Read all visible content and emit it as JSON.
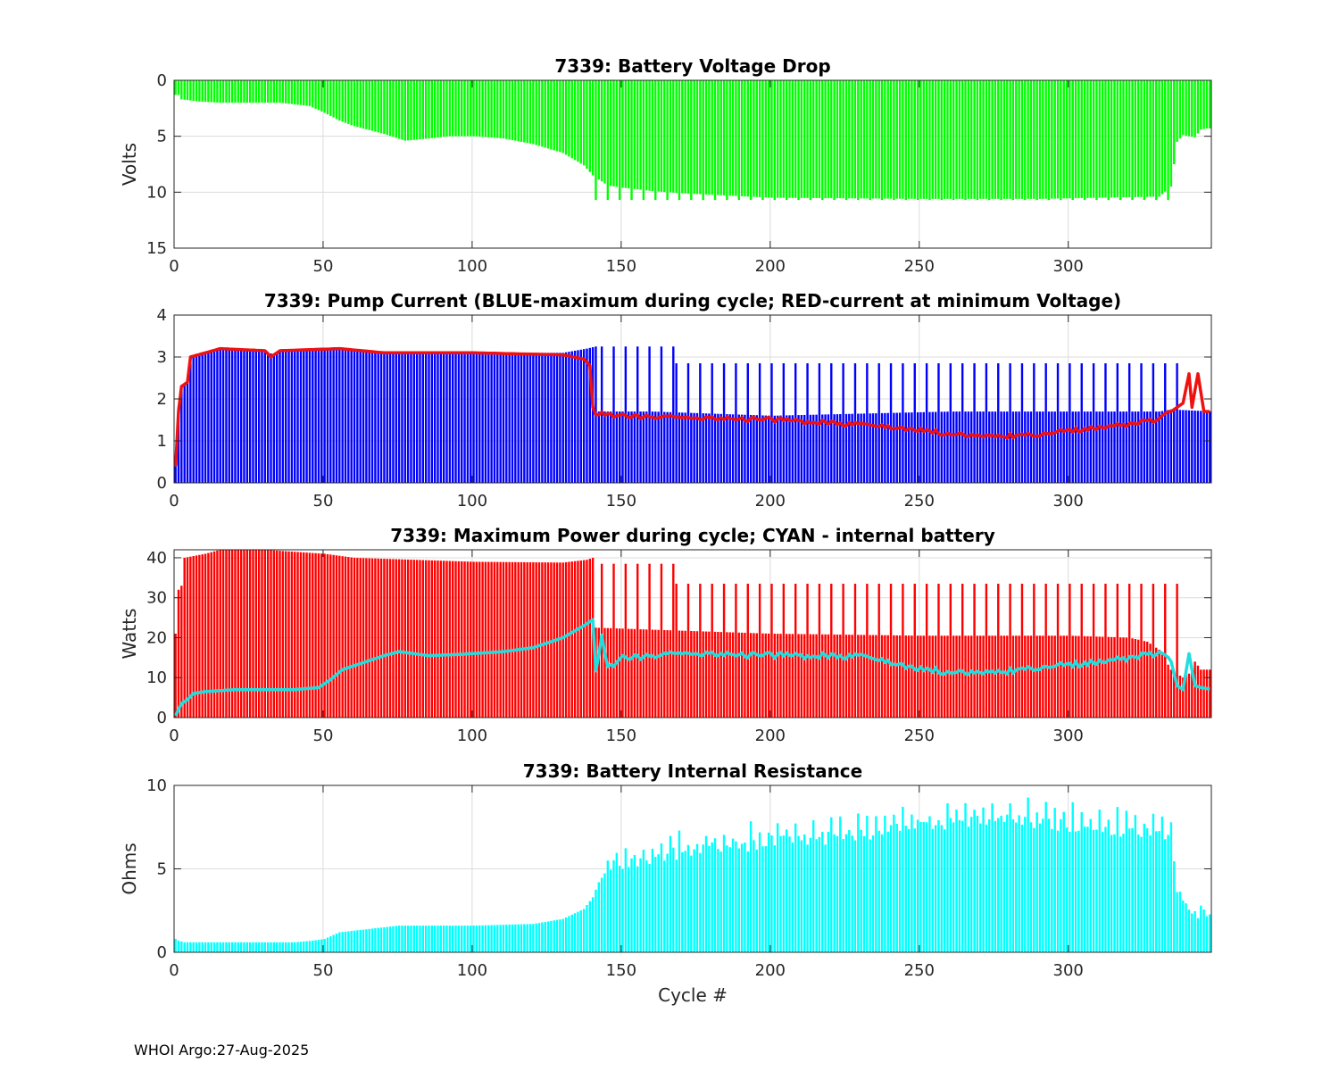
{
  "footer": "WHOI Argo:27-Aug-2025",
  "colors": {
    "green": "#00ff00",
    "blue": "#0000ff",
    "red": "#ff0000",
    "cyan": "#00ffff",
    "line_red": "#ee1111",
    "line_cyan": "#22dddd"
  },
  "chart_data": [
    {
      "type": "bar",
      "title": "7339: Battery Voltage Drop",
      "xlabel": "",
      "ylabel": "Volts",
      "xlim": [
        0,
        348
      ],
      "ylim": [
        0,
        15
      ],
      "y_reversed": true,
      "xticks": [
        0,
        50,
        100,
        150,
        200,
        250,
        300
      ],
      "yticks": [
        0,
        5,
        10,
        15
      ],
      "grid": true,
      "bar_color": "#00ff00",
      "series": [
        {
          "name": "Voltage drop",
          "kind": "bar",
          "profile": [
            [
              0,
              1.3
            ],
            [
              1,
              1.3
            ],
            [
              2,
              1.7
            ],
            [
              8,
              1.9
            ],
            [
              15,
              2.0
            ],
            [
              25,
              2.0
            ],
            [
              35,
              2.0
            ],
            [
              45,
              2.3
            ],
            [
              50,
              2.9
            ],
            [
              55,
              3.6
            ],
            [
              60,
              4.1
            ],
            [
              70,
              4.8
            ],
            [
              77,
              5.4
            ],
            [
              85,
              5.2
            ],
            [
              92,
              5.0
            ],
            [
              100,
              5.0
            ],
            [
              110,
              5.2
            ],
            [
              120,
              5.7
            ],
            [
              130,
              6.5
            ],
            [
              137,
              7.6
            ],
            [
              140,
              8.5
            ],
            [
              145,
              9.4
            ],
            [
              150,
              9.6
            ],
            [
              160,
              9.9
            ],
            [
              170,
              10.1
            ],
            [
              200,
              10.5
            ],
            [
              250,
              10.6
            ],
            [
              290,
              10.6
            ],
            [
              310,
              10.5
            ],
            [
              330,
              10.4
            ],
            [
              334,
              9.5
            ],
            [
              336,
              5.5
            ],
            [
              338,
              4.9
            ],
            [
              340,
              5.0
            ],
            [
              342,
              5.1
            ],
            [
              344,
              4.4
            ],
            [
              346,
              4.3
            ],
            [
              348,
              4.3
            ]
          ],
          "spikes": [
            {
              "every": 4,
              "start": 141,
              "end": 334,
              "value": 10.7
            }
          ]
        }
      ]
    },
    {
      "type": "bar",
      "title": "7339: Pump Current (BLUE-maximum during cycle; RED-current at minimum Voltage)",
      "xlabel": "",
      "ylabel": "",
      "xlim": [
        0,
        348
      ],
      "ylim": [
        0,
        4
      ],
      "xticks": [
        0,
        50,
        100,
        150,
        200,
        250,
        300
      ],
      "yticks": [
        0,
        1,
        2,
        3,
        4
      ],
      "grid": true,
      "bar_color": "#0000ff",
      "line_color": "#ee1111",
      "series": [
        {
          "name": "Maximum current during cycle",
          "kind": "bar",
          "profile": [
            [
              0,
              0.4
            ],
            [
              1,
              1.8
            ],
            [
              2,
              2.3
            ],
            [
              4,
              2.4
            ],
            [
              5,
              3.0
            ],
            [
              10,
              3.1
            ],
            [
              15,
              3.2
            ],
            [
              30,
              3.15
            ],
            [
              33,
              3.05
            ],
            [
              35,
              3.15
            ],
            [
              55,
              3.2
            ],
            [
              70,
              3.1
            ],
            [
              100,
              3.1
            ],
            [
              130,
              3.1
            ],
            [
              138,
              3.2
            ],
            [
              141,
              3.25
            ],
            [
              142,
              1.7
            ],
            [
              160,
              1.7
            ],
            [
              180,
              1.65
            ],
            [
              200,
              1.6
            ],
            [
              230,
              1.65
            ],
            [
              260,
              1.7
            ],
            [
              300,
              1.7
            ],
            [
              330,
              1.7
            ],
            [
              334,
              1.75
            ],
            [
              348,
              1.7
            ]
          ],
          "spikes": [
            {
              "every": 4,
              "start": 143,
              "end": 167,
              "value": 3.25
            },
            {
              "every": 4,
              "start": 168,
              "end": 336,
              "value": 2.85
            }
          ]
        },
        {
          "name": "Current at minimum voltage",
          "kind": "line",
          "profile": [
            [
              0,
              0.4
            ],
            [
              1,
              1.7
            ],
            [
              2,
              2.3
            ],
            [
              4,
              2.4
            ],
            [
              5,
              3.0
            ],
            [
              10,
              3.1
            ],
            [
              15,
              3.2
            ],
            [
              30,
              3.15
            ],
            [
              32,
              3.0
            ],
            [
              35,
              3.15
            ],
            [
              55,
              3.2
            ],
            [
              70,
              3.1
            ],
            [
              100,
              3.1
            ],
            [
              130,
              3.05
            ],
            [
              137,
              2.95
            ],
            [
              139,
              2.8
            ],
            [
              140,
              1.8
            ],
            [
              141,
              1.65
            ],
            [
              150,
              1.6
            ],
            [
              170,
              1.55
            ],
            [
              200,
              1.5
            ],
            [
              230,
              1.4
            ],
            [
              250,
              1.25
            ],
            [
              270,
              1.1
            ],
            [
              290,
              1.15
            ],
            [
              300,
              1.25
            ],
            [
              320,
              1.4
            ],
            [
              330,
              1.5
            ],
            [
              334,
              1.7
            ],
            [
              338,
              1.9
            ],
            [
              340,
              2.6
            ],
            [
              341,
              1.8
            ],
            [
              343,
              2.6
            ],
            [
              345,
              1.7
            ],
            [
              348,
              1.7
            ]
          ]
        }
      ]
    },
    {
      "type": "bar",
      "title": "7339: Maximum Power during cycle; CYAN - internal battery",
      "xlabel": "",
      "ylabel": "Watts",
      "xlim": [
        0,
        348
      ],
      "ylim": [
        0,
        42
      ],
      "xticks": [
        0,
        50,
        100,
        150,
        200,
        250,
        300
      ],
      "yticks": [
        0,
        10,
        20,
        30,
        40
      ],
      "grid": true,
      "bar_color": "#ff0000",
      "line_color": "#22dddd",
      "series": [
        {
          "name": "Maximum power during cycle",
          "kind": "bar",
          "profile": [
            [
              0,
              21
            ],
            [
              1,
              32
            ],
            [
              2,
              33
            ],
            [
              3,
              40
            ],
            [
              10,
              41
            ],
            [
              15,
              42
            ],
            [
              30,
              42
            ],
            [
              40,
              41.5
            ],
            [
              50,
              41
            ],
            [
              60,
              40
            ],
            [
              80,
              39.5
            ],
            [
              100,
              39
            ],
            [
              130,
              38.8
            ],
            [
              138,
              39.5
            ],
            [
              140,
              40
            ],
            [
              141,
              22.5
            ],
            [
              160,
              22
            ],
            [
              180,
              21.5
            ],
            [
              200,
              21
            ],
            [
              250,
              20.5
            ],
            [
              300,
              20.5
            ],
            [
              320,
              20
            ],
            [
              326,
              19
            ],
            [
              330,
              17
            ],
            [
              334,
              12
            ],
            [
              338,
              10
            ],
            [
              340,
              11
            ],
            [
              342,
              14
            ],
            [
              344,
              12
            ],
            [
              348,
              12
            ]
          ],
          "spikes": [
            {
              "every": 4,
              "start": 143,
              "end": 167,
              "value": 38.5
            },
            {
              "every": 4,
              "start": 168,
              "end": 336,
              "value": 33.5
            }
          ]
        },
        {
          "name": "Internal battery",
          "kind": "line",
          "profile": [
            [
              0,
              0.5
            ],
            [
              2,
              3.5
            ],
            [
              4,
              4.5
            ],
            [
              6,
              6
            ],
            [
              10,
              6.5
            ],
            [
              20,
              7
            ],
            [
              40,
              7
            ],
            [
              48,
              7.5
            ],
            [
              52,
              9.5
            ],
            [
              56,
              12
            ],
            [
              62,
              13.5
            ],
            [
              70,
              15.5
            ],
            [
              75,
              16.5
            ],
            [
              85,
              15.5
            ],
            [
              95,
              15.8
            ],
            [
              110,
              16.5
            ],
            [
              120,
              17.5
            ],
            [
              130,
              20
            ],
            [
              137,
              23
            ],
            [
              140,
              24.5
            ],
            [
              141,
              12
            ],
            [
              143,
              20
            ],
            [
              145,
              12.5
            ],
            [
              150,
              15
            ],
            [
              170,
              16
            ],
            [
              200,
              15.5
            ],
            [
              230,
              15.5
            ],
            [
              250,
              12
            ],
            [
              270,
              11
            ],
            [
              290,
              12.5
            ],
            [
              310,
              14
            ],
            [
              325,
              15.5
            ],
            [
              330,
              16
            ],
            [
              334,
              14
            ],
            [
              336,
              8
            ],
            [
              338,
              7
            ],
            [
              340,
              16
            ],
            [
              342,
              8
            ],
            [
              344,
              7.5
            ],
            [
              348,
              7
            ]
          ]
        }
      ]
    },
    {
      "type": "bar",
      "title": "7339: Battery Internal Resistance",
      "xlabel": "Cycle #",
      "ylabel": "Ohms",
      "xlim": [
        0,
        348
      ],
      "ylim": [
        0,
        10
      ],
      "xticks": [
        0,
        50,
        100,
        150,
        200,
        250,
        300
      ],
      "yticks": [
        0,
        5,
        10
      ],
      "grid": true,
      "bar_color": "#00ffff",
      "series": [
        {
          "name": "Internal resistance",
          "kind": "bar",
          "profile": [
            [
              0,
              0.8
            ],
            [
              1,
              0.7
            ],
            [
              3,
              0.6
            ],
            [
              10,
              0.6
            ],
            [
              40,
              0.6
            ],
            [
              46,
              0.7
            ],
            [
              50,
              0.8
            ],
            [
              55,
              1.2
            ],
            [
              65,
              1.4
            ],
            [
              75,
              1.6
            ],
            [
              100,
              1.6
            ],
            [
              120,
              1.7
            ],
            [
              130,
              2.0
            ],
            [
              137,
              2.6
            ],
            [
              140,
              3.3
            ],
            [
              142,
              4.2
            ],
            [
              145,
              5.0
            ],
            [
              150,
              5.3
            ],
            [
              170,
              6.0
            ],
            [
              200,
              6.6
            ],
            [
              230,
              7.0
            ],
            [
              250,
              7.6
            ],
            [
              270,
              8.0
            ],
            [
              290,
              7.8
            ],
            [
              310,
              7.4
            ],
            [
              330,
              7.2
            ],
            [
              334,
              6.6
            ],
            [
              336,
              4.0
            ],
            [
              338,
              3.0
            ],
            [
              340,
              2.2
            ],
            [
              344,
              2.4
            ],
            [
              348,
              2.5
            ]
          ],
          "spikes": [
            {
              "every": 3,
              "start": 145,
              "end": 335,
              "jitter": 0.9
            }
          ]
        }
      ]
    }
  ]
}
